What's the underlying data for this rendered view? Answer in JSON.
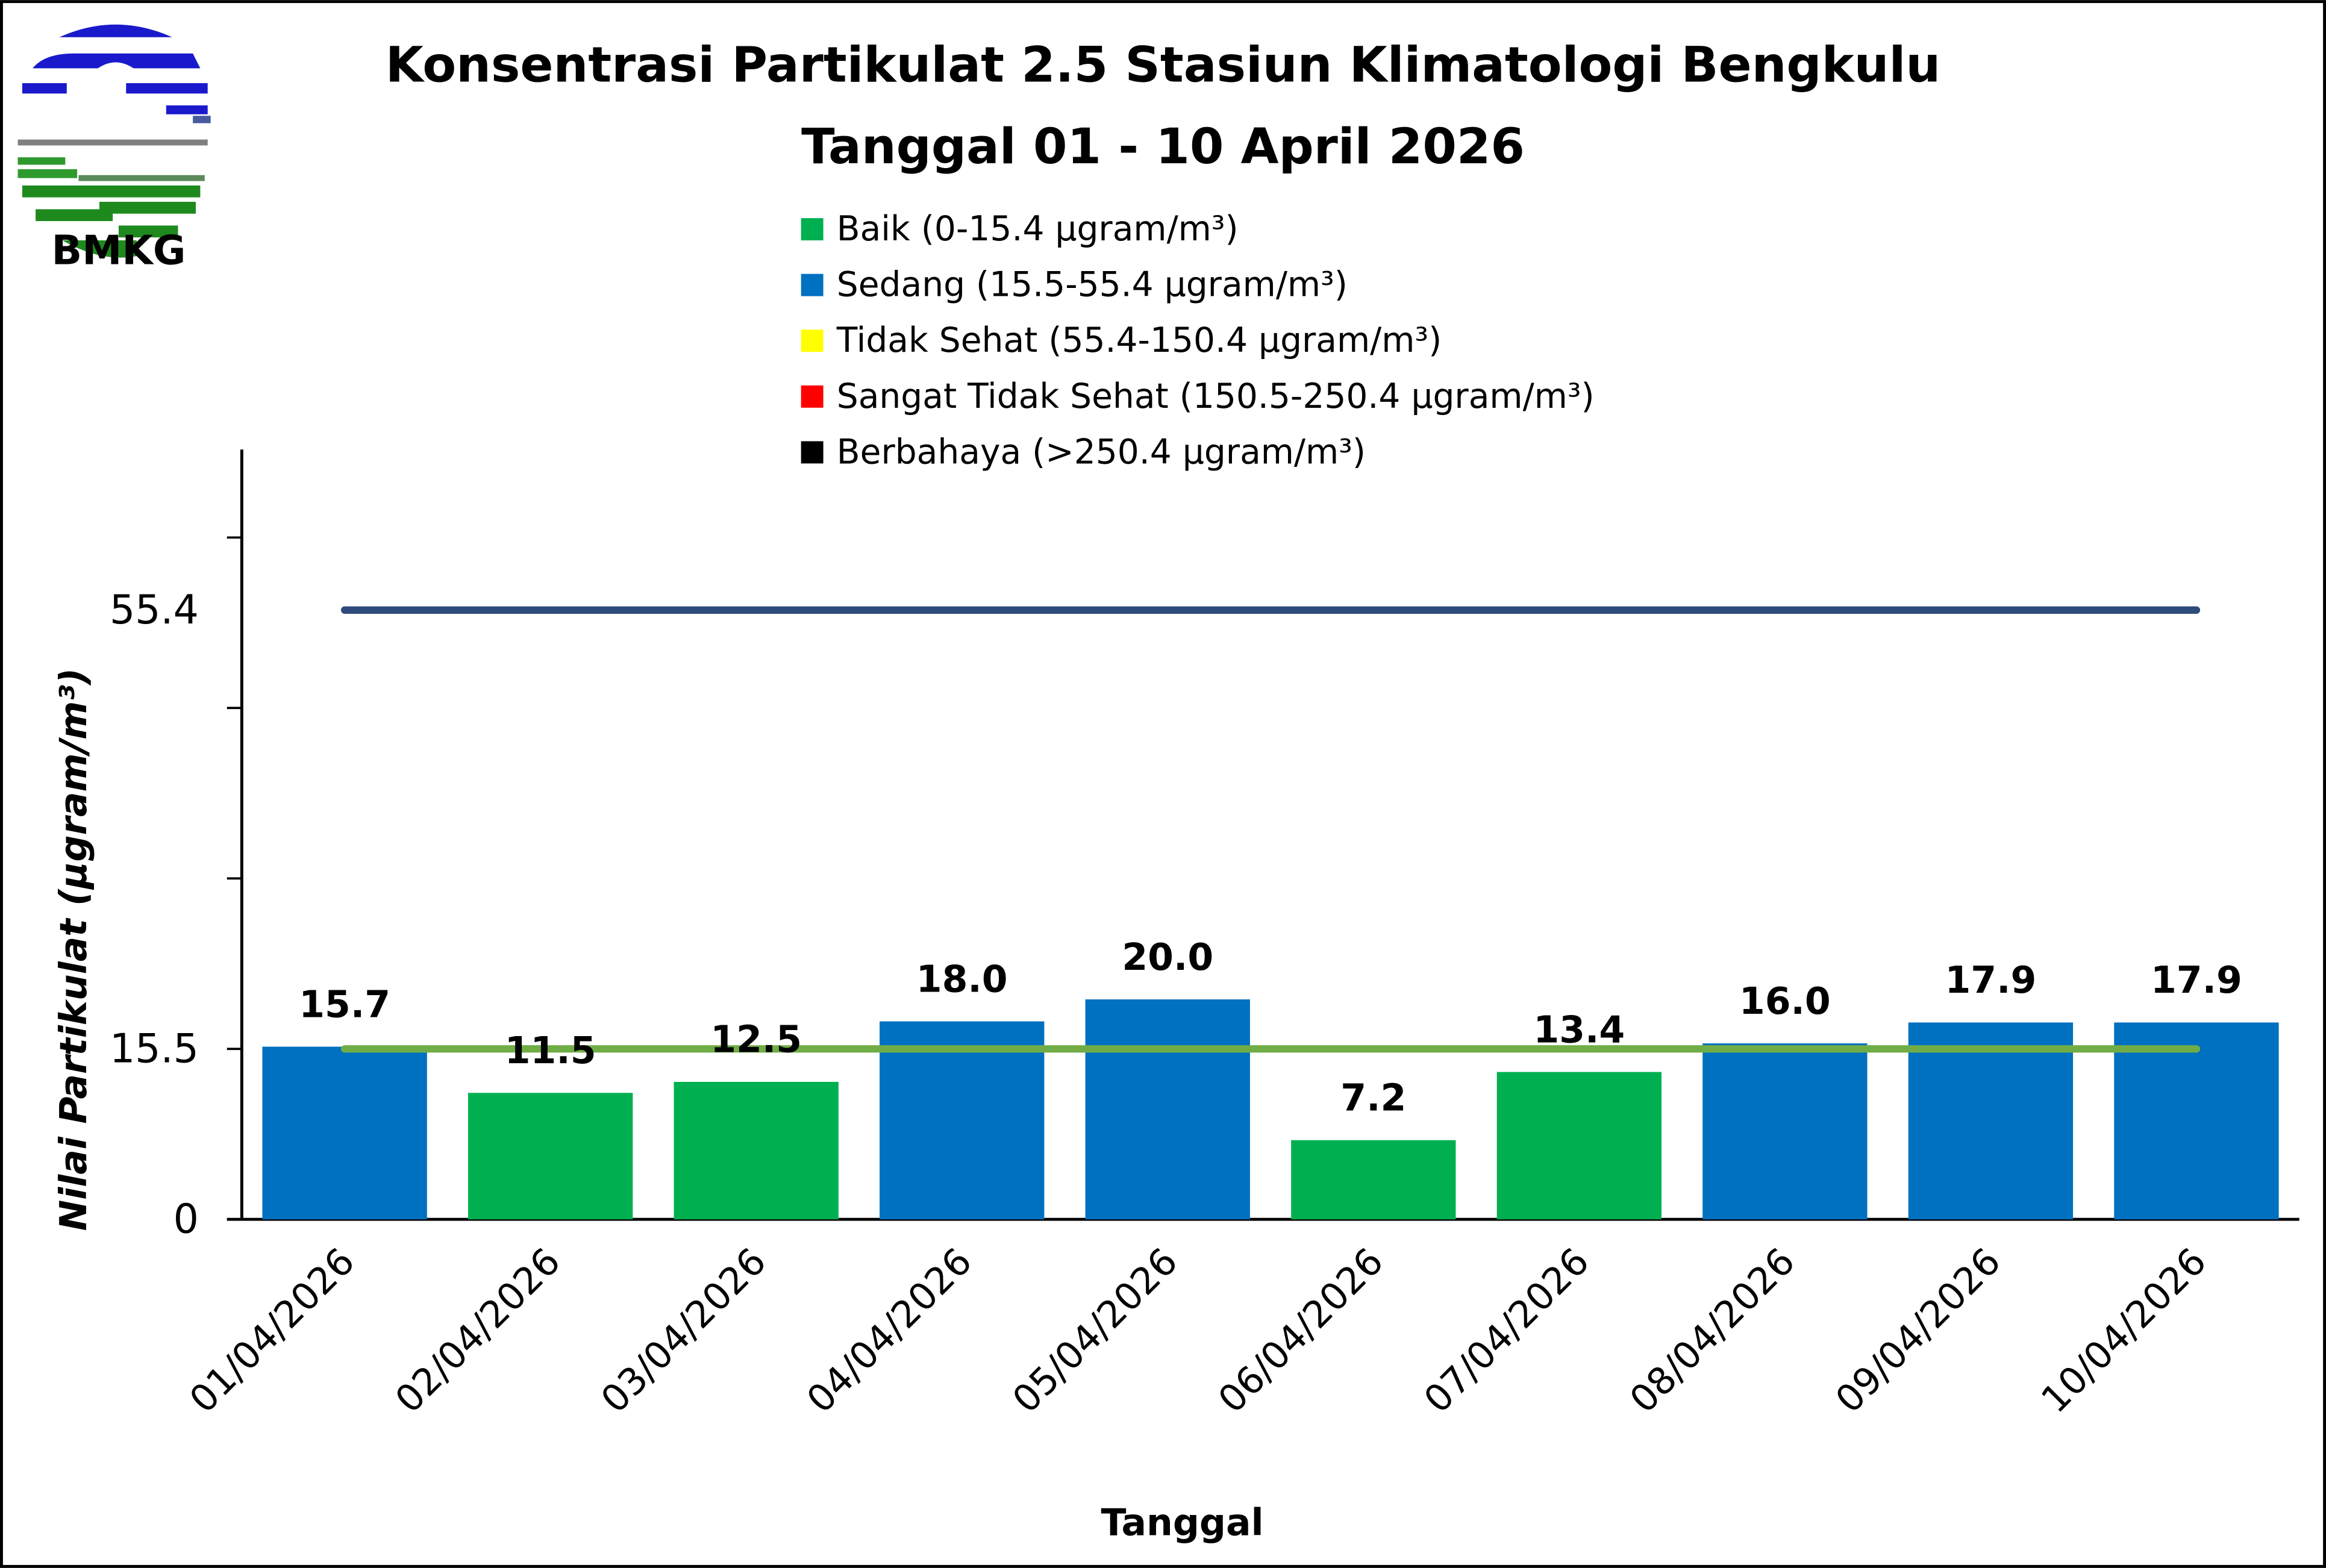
{
  "logo": {
    "text": "BMKG"
  },
  "chart_data": {
    "type": "bar",
    "title": "Konsentrasi Partikulat 2.5 Stasiun Klimatologi Bengkulu",
    "subtitle": "Tanggal 01 - 10 April 2026",
    "xlabel": "Tanggal",
    "ylabel": "Nilai Partikulat (µgram/m³)",
    "ylim": [
      0,
      70
    ],
    "yticks": [
      0,
      15.5,
      31,
      46.5,
      62
    ],
    "ytick_labels": [
      {
        "value": 0,
        "label": "0"
      },
      {
        "value": 15.5,
        "label": "15.5"
      },
      {
        "value": 55.4,
        "label": "55.4"
      }
    ],
    "categories": [
      "01/04/2026",
      "02/04/2026",
      "03/04/2026",
      "04/04/2026",
      "05/04/2026",
      "06/04/2026",
      "07/04/2026",
      "08/04/2026",
      "09/04/2026",
      "10/04/2026"
    ],
    "values": [
      15.7,
      11.5,
      12.5,
      18.0,
      20.0,
      7.2,
      13.4,
      16.0,
      17.9,
      17.9
    ],
    "value_labels": [
      "15.7",
      "11.5",
      "12.5",
      "18.0",
      "20.0",
      "7.2",
      "13.4",
      "16.0",
      "17.9",
      "17.9"
    ],
    "bar_colors": [
      "#0070C0",
      "#00B050",
      "#00B050",
      "#0070C0",
      "#0070C0",
      "#00B050",
      "#00B050",
      "#0070C0",
      "#0070C0",
      "#0070C0"
    ],
    "threshold_lines": [
      {
        "value": 55.4,
        "color": "#2F4B7C"
      },
      {
        "value": 15.5,
        "color": "#70AD47"
      }
    ],
    "legend": [
      {
        "label": "Baik (0-15.4 µgram/m³)",
        "color": "#00B050"
      },
      {
        "label": "Sedang (15.5-55.4 µgram/m³)",
        "color": "#0070C0"
      },
      {
        "label": "Tidak Sehat (55.4-150.4 µgram/m³)",
        "color": "#FFFF00"
      },
      {
        "label": "Sangat Tidak Sehat (150.5-250.4 µgram/m³)",
        "color": "#FF0000"
      },
      {
        "label": "Berbahaya (>250.4 µgram/m³)",
        "color": "#000000"
      }
    ],
    "legend_position": "top-center",
    "grid": false
  }
}
